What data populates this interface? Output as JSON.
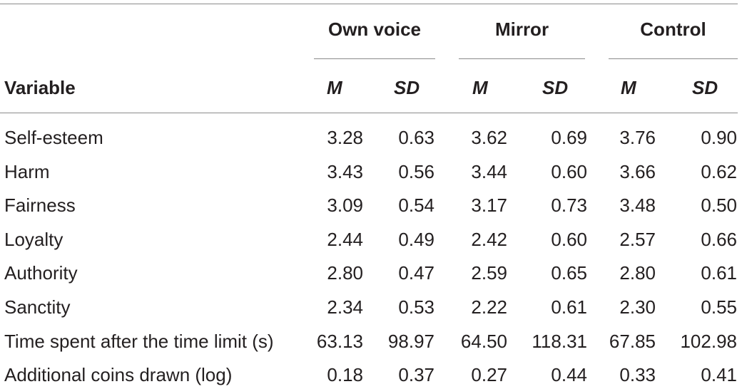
{
  "table": {
    "group_headers": [
      "Own voice",
      "Mirror",
      "Control"
    ],
    "variable_header": "Variable",
    "stat_headers": [
      "M",
      "SD",
      "M",
      "SD",
      "M",
      "SD"
    ],
    "rows": [
      {
        "label": "Self-esteem",
        "values": [
          "3.28",
          "0.63",
          "3.62",
          "0.69",
          "3.76",
          "0.90"
        ]
      },
      {
        "label": "Harm",
        "values": [
          "3.43",
          "0.56",
          "3.44",
          "0.60",
          "3.66",
          "0.62"
        ]
      },
      {
        "label": "Fairness",
        "values": [
          "3.09",
          "0.54",
          "3.17",
          "0.73",
          "3.48",
          "0.50"
        ]
      },
      {
        "label": "Loyalty",
        "values": [
          "2.44",
          "0.49",
          "2.42",
          "0.60",
          "2.57",
          "0.66"
        ]
      },
      {
        "label": "Authority",
        "values": [
          "2.80",
          "0.47",
          "2.59",
          "0.65",
          "2.80",
          "0.61"
        ]
      },
      {
        "label": "Sanctity",
        "values": [
          "2.34",
          "0.53",
          "2.22",
          "0.61",
          "2.30",
          "0.55"
        ]
      },
      {
        "label": "Time spent after the time limit (s)",
        "values": [
          "63.13",
          "98.97",
          "64.50",
          "118.31",
          "67.85",
          "102.98"
        ]
      },
      {
        "label": "Additional coins drawn (log)",
        "values": [
          "0.18",
          "0.37",
          "0.27",
          "0.44",
          "0.33",
          "0.41"
        ]
      }
    ]
  }
}
